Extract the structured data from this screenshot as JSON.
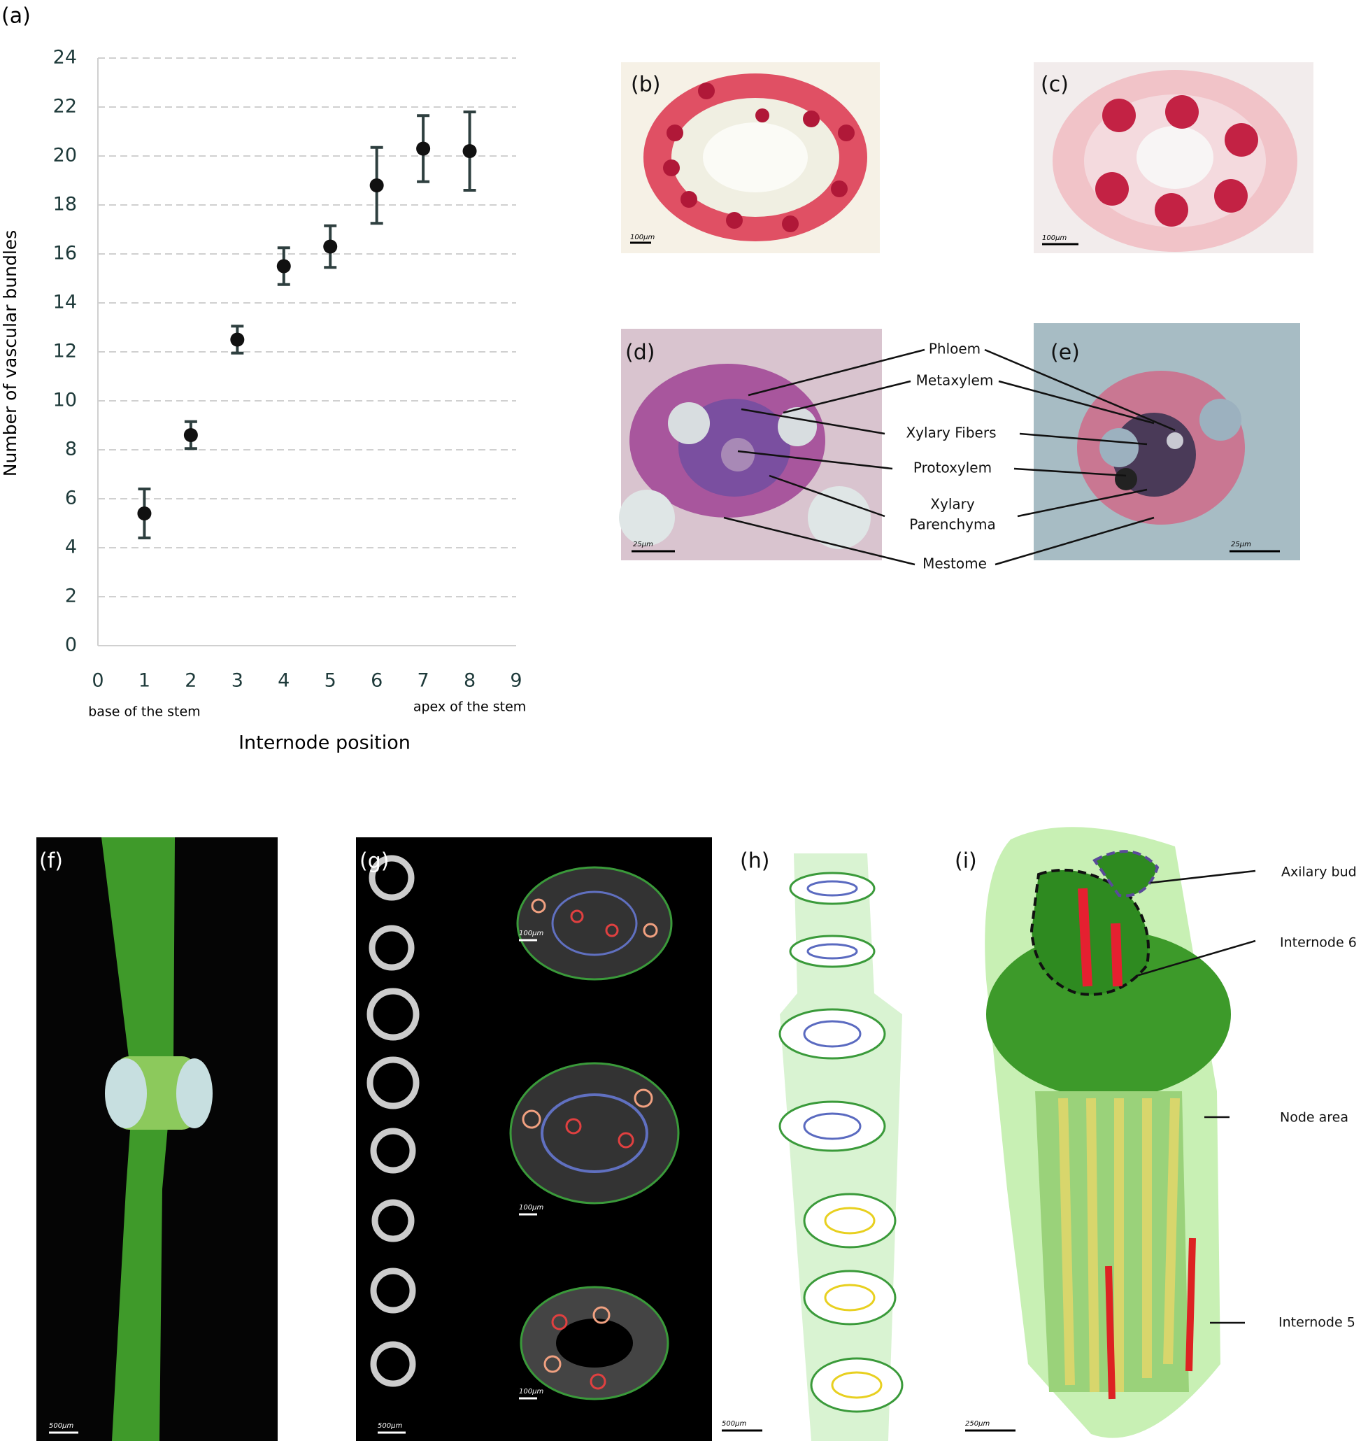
{
  "chart_data": {
    "type": "scatter",
    "panel": "(a)",
    "y_label": "Number of vascular bundles",
    "x_label": "Internode position",
    "annotations": [
      "base of the stem",
      "apex of the stem"
    ],
    "x": [
      1,
      2,
      3,
      4,
      5,
      6,
      7,
      8
    ],
    "values": [
      5.4,
      8.6,
      12.5,
      15.5,
      16.3,
      18.8,
      20.3,
      20.2
    ],
    "errors": [
      1.0,
      0.55,
      0.55,
      0.75,
      0.85,
      1.55,
      1.35,
      1.6
    ],
    "color": "#111111",
    "error_color": "#2e3f3f",
    "xlim": [
      0,
      9
    ],
    "xticks": [
      0,
      1,
      2,
      3,
      4,
      5,
      6,
      7,
      8,
      9
    ],
    "ylim": [
      0,
      24
    ],
    "yticks": [
      0,
      2,
      4,
      6,
      8,
      10,
      12,
      14,
      16,
      18,
      20,
      22,
      24
    ],
    "grid": true
  },
  "panels": [
    {
      "label": "(b)",
      "scale": "100µm"
    },
    {
      "label": "(c)",
      "scale": "100µm"
    },
    {
      "label": "(d)",
      "scale": "25µm"
    },
    {
      "label": "(e)",
      "scale": "25µm"
    },
    {
      "label": "(f)",
      "scale": "500µm"
    },
    {
      "label": "(g)",
      "scale": "500µm",
      "scales": [
        "100µm",
        "100µm",
        "100µm"
      ]
    },
    {
      "label": "(h)",
      "scale": "500µm"
    },
    {
      "label": "(i)",
      "scale": "250µm"
    }
  ],
  "callouts": [
    "Phloem",
    "Metaxylem",
    "Xylary Fibers",
    "Protoxylem",
    "Xylary",
    "Parenchyma",
    "Mestome"
  ],
  "labels_i": [
    "Axilary bud",
    "Internode 6",
    "Node area",
    "Internode 5"
  ]
}
